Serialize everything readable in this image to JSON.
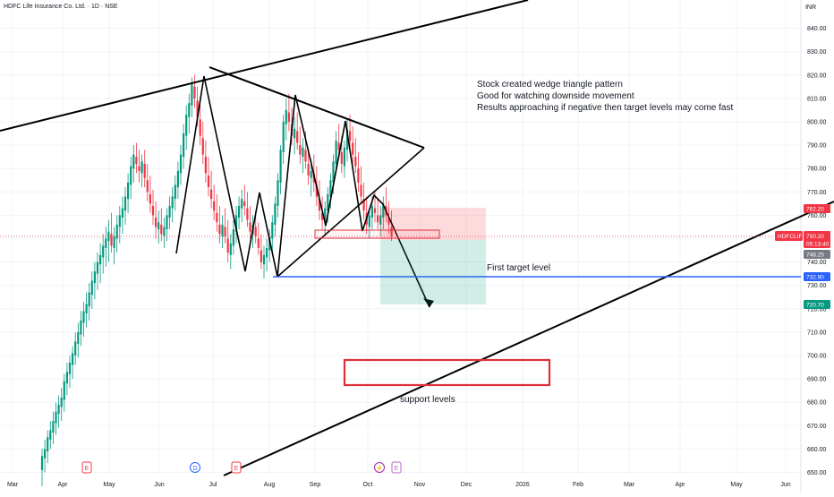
{
  "header": {
    "symbol_line": "HDFC Life Insurance Co. Ltd. · 1D · NSE",
    "currency": "INR"
  },
  "chart_data": {
    "type": "candlestick",
    "ylim": [
      645,
      845
    ],
    "y_ticks": [
      650,
      660,
      670,
      680,
      690,
      700,
      710,
      720,
      730,
      740,
      750,
      760,
      770,
      780,
      790,
      800,
      810,
      820,
      830,
      840
    ],
    "x_ticks": [
      "Mar",
      "Apr",
      "May",
      "Jun",
      "Jul",
      "Aug",
      "Sep",
      "Oct",
      "Nov",
      "Dec",
      "2026",
      "Feb",
      "Mar",
      "Apr",
      "May",
      "Jun"
    ],
    "colors": {
      "up": "#089981",
      "down": "#f23645",
      "line": "#000000",
      "target": "#2962ff",
      "box": "#e0303a"
    },
    "price_tags": [
      {
        "label": "HDFCLIFE",
        "value": "750.20",
        "sub": "05:13:40",
        "color": "#f23645"
      },
      {
        "value": "762.20",
        "color": "#f23645"
      },
      {
        "value": "748.25",
        "color": "#787b86"
      },
      {
        "value": "732.90",
        "color": "#2962ff"
      },
      {
        "value": "720.70",
        "color": "#089981"
      }
    ],
    "event_markers": [
      "E",
      "D",
      "E",
      "⚡",
      "E"
    ],
    "annotations": {
      "main": [
        "Stock created wedge triangle pattern",
        "Good for watching downside movement",
        "Results approaching if negative then target levels may come fast"
      ],
      "first_target": "First target level",
      "support": "support levels"
    },
    "candles": [
      [
        651,
        660,
        644,
        657
      ],
      [
        656,
        664,
        650,
        660
      ],
      [
        659,
        668,
        654,
        665
      ],
      [
        664,
        672,
        660,
        668
      ],
      [
        667,
        676,
        662,
        672
      ],
      [
        671,
        680,
        666,
        676
      ],
      [
        675,
        683,
        669,
        679
      ],
      [
        678,
        686,
        672,
        682
      ],
      [
        681,
        692,
        676,
        689
      ],
      [
        688,
        697,
        683,
        693
      ],
      [
        692,
        700,
        686,
        697
      ],
      [
        696,
        704,
        690,
        701
      ],
      [
        700,
        710,
        696,
        706
      ],
      [
        705,
        714,
        699,
        710
      ],
      [
        709,
        719,
        704,
        715
      ],
      [
        714,
        723,
        708,
        719
      ],
      [
        718,
        727,
        712,
        722
      ],
      [
        721,
        731,
        715,
        727
      ],
      [
        726,
        736,
        720,
        732
      ],
      [
        731,
        740,
        724,
        736
      ],
      [
        735,
        744,
        728,
        740
      ],
      [
        739,
        748,
        731,
        743
      ],
      [
        742,
        752,
        735,
        747
      ],
      [
        746,
        755,
        738,
        750
      ],
      [
        749,
        758,
        740,
        753
      ],
      [
        752,
        761,
        744,
        747
      ],
      [
        746,
        755,
        739,
        751
      ],
      [
        750,
        760,
        744,
        756
      ],
      [
        755,
        764,
        748,
        760
      ],
      [
        759,
        768,
        752,
        763
      ],
      [
        762,
        772,
        756,
        768
      ],
      [
        767,
        778,
        761,
        774
      ],
      [
        773,
        785,
        767,
        781
      ],
      [
        780,
        790,
        774,
        786
      ],
      [
        785,
        791,
        778,
        782
      ],
      [
        781,
        788,
        774,
        779
      ],
      [
        778,
        786,
        772,
        783
      ],
      [
        782,
        788,
        772,
        776
      ],
      [
        775,
        782,
        766,
        770
      ],
      [
        769,
        777,
        761,
        765
      ],
      [
        764,
        771,
        756,
        760
      ],
      [
        759,
        766,
        750,
        755
      ],
      [
        754,
        762,
        748,
        757
      ],
      [
        756,
        763,
        749,
        752
      ],
      [
        751,
        759,
        746,
        755
      ],
      [
        754,
        763,
        749,
        760
      ],
      [
        759,
        768,
        754,
        764
      ],
      [
        763,
        772,
        757,
        768
      ],
      [
        767,
        777,
        762,
        773
      ],
      [
        772,
        783,
        767,
        779
      ],
      [
        778,
        790,
        773,
        786
      ],
      [
        785,
        799,
        780,
        795
      ],
      [
        794,
        807,
        788,
        803
      ],
      [
        802,
        812,
        795,
        808
      ],
      [
        807,
        819,
        802,
        816
      ],
      [
        815,
        820,
        806,
        810
      ],
      [
        809,
        815,
        798,
        802
      ],
      [
        801,
        808,
        790,
        794
      ],
      [
        793,
        800,
        782,
        786
      ],
      [
        785,
        792,
        774,
        778
      ],
      [
        777,
        785,
        768,
        772
      ],
      [
        771,
        779,
        763,
        767
      ],
      [
        766,
        773,
        758,
        762
      ],
      [
        761,
        769,
        753,
        757
      ],
      [
        756,
        764,
        748,
        752
      ],
      [
        751,
        760,
        746,
        756
      ],
      [
        755,
        763,
        748,
        751
      ],
      [
        750,
        758,
        740,
        744
      ],
      [
        743,
        752,
        737,
        748
      ],
      [
        747,
        758,
        743,
        754
      ],
      [
        753,
        764,
        748,
        760
      ],
      [
        759,
        768,
        754,
        764
      ],
      [
        763,
        771,
        757,
        767
      ],
      [
        766,
        773,
        760,
        764
      ],
      [
        763,
        770,
        755,
        758
      ],
      [
        757,
        764,
        750,
        753
      ],
      [
        752,
        760,
        746,
        756
      ],
      [
        755,
        762,
        748,
        751
      ],
      [
        750,
        757,
        743,
        746
      ],
      [
        745,
        752,
        737,
        740
      ],
      [
        739,
        747,
        733,
        743
      ],
      [
        742,
        750,
        736,
        746
      ],
      [
        745,
        754,
        740,
        751
      ],
      [
        750,
        760,
        744,
        757
      ],
      [
        756,
        768,
        751,
        765
      ],
      [
        764,
        778,
        759,
        775
      ],
      [
        774,
        790,
        769,
        788
      ],
      [
        787,
        803,
        782,
        800
      ],
      [
        799,
        810,
        792,
        805
      ],
      [
        804,
        812,
        796,
        800
      ],
      [
        799,
        806,
        790,
        794
      ],
      [
        793,
        802,
        786,
        797
      ],
      [
        796,
        804,
        788,
        791
      ],
      [
        790,
        798,
        782,
        786
      ],
      [
        785,
        793,
        778,
        789
      ],
      [
        788,
        796,
        780,
        783
      ],
      [
        782,
        789,
        773,
        777
      ],
      [
        776,
        784,
        768,
        779
      ],
      [
        778,
        786,
        770,
        774
      ],
      [
        773,
        781,
        764,
        768
      ],
      [
        767,
        775,
        758,
        762
      ],
      [
        761,
        768,
        754,
        758
      ],
      [
        757,
        766,
        752,
        763
      ],
      [
        762,
        772,
        757,
        769
      ],
      [
        768,
        778,
        763,
        775
      ],
      [
        774,
        786,
        769,
        783
      ],
      [
        782,
        796,
        778,
        792
      ],
      [
        791,
        799,
        784,
        788
      ],
      [
        787,
        794,
        778,
        782
      ],
      [
        781,
        792,
        776,
        789
      ],
      [
        788,
        801,
        783,
        797
      ],
      [
        796,
        803,
        788,
        792
      ],
      [
        791,
        798,
        782,
        786
      ],
      [
        785,
        793,
        778,
        781
      ],
      [
        780,
        787,
        770,
        774
      ],
      [
        773,
        781,
        765,
        768
      ],
      [
        767,
        774,
        758,
        762
      ],
      [
        761,
        768,
        752,
        756
      ],
      [
        755,
        763,
        750,
        760
      ],
      [
        759,
        768,
        754,
        764
      ],
      [
        763,
        770,
        757,
        761
      ],
      [
        760,
        767,
        754,
        757
      ],
      [
        756,
        764,
        751,
        760
      ],
      [
        759,
        768,
        754,
        765
      ],
      [
        764,
        772,
        757,
        760
      ],
      [
        759,
        766,
        752,
        756
      ],
      [
        755,
        762,
        749,
        751
      ]
    ]
  }
}
